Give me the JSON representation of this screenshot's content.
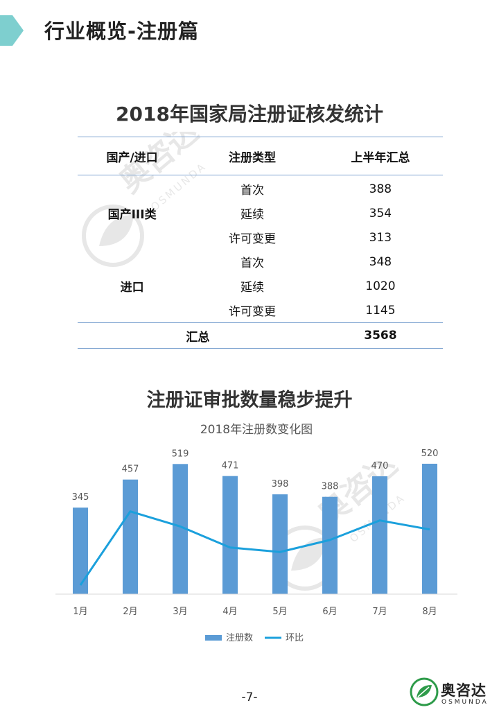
{
  "header": {
    "title": "行业概览-注册篇",
    "accent_color": "#7ecfcf"
  },
  "table": {
    "title": "2018年国家局注册证核发统计",
    "headers": [
      "国产/进口",
      "注册类型",
      "上半年汇总"
    ],
    "groups": [
      {
        "name": "国产III类",
        "rows": [
          {
            "type": "首次",
            "value": "388"
          },
          {
            "type": "延续",
            "value": "354"
          },
          {
            "type": "许可变更",
            "value": "313"
          }
        ]
      },
      {
        "name": "进口",
        "rows": [
          {
            "type": "首次",
            "value": "348"
          },
          {
            "type": "延续",
            "value": "1020"
          },
          {
            "type": "许可变更",
            "value": "1145"
          }
        ]
      }
    ],
    "total_label": "汇总",
    "total_value": "3568",
    "rule_color": "#7ba1cf"
  },
  "chart_heading": "注册证审批数量稳步提升",
  "chart_data": {
    "type": "bar",
    "title": "2018年注册数变化图",
    "categories": [
      "1月",
      "2月",
      "3月",
      "4月",
      "5月",
      "6月",
      "7月",
      "8月"
    ],
    "series": [
      {
        "name": "注册数",
        "kind": "bar",
        "color": "#5b9bd5",
        "values": [
          345,
          457,
          519,
          471,
          398,
          388,
          470,
          520
        ]
      },
      {
        "name": "环比",
        "kind": "line",
        "color": "#1ba0dc",
        "values": [
          0.06,
          0.55,
          0.45,
          0.31,
          0.28,
          0.36,
          0.49,
          0.43
        ]
      }
    ],
    "ylim": [
      0,
      600
    ],
    "legend": "bottom",
    "grid": false
  },
  "footer": {
    "page": "-7-",
    "brand_name": "奥咨达",
    "brand_sub": "OSMUNDA",
    "watermark_name": "奥咨达",
    "watermark_sub": "OSMUNDA"
  }
}
